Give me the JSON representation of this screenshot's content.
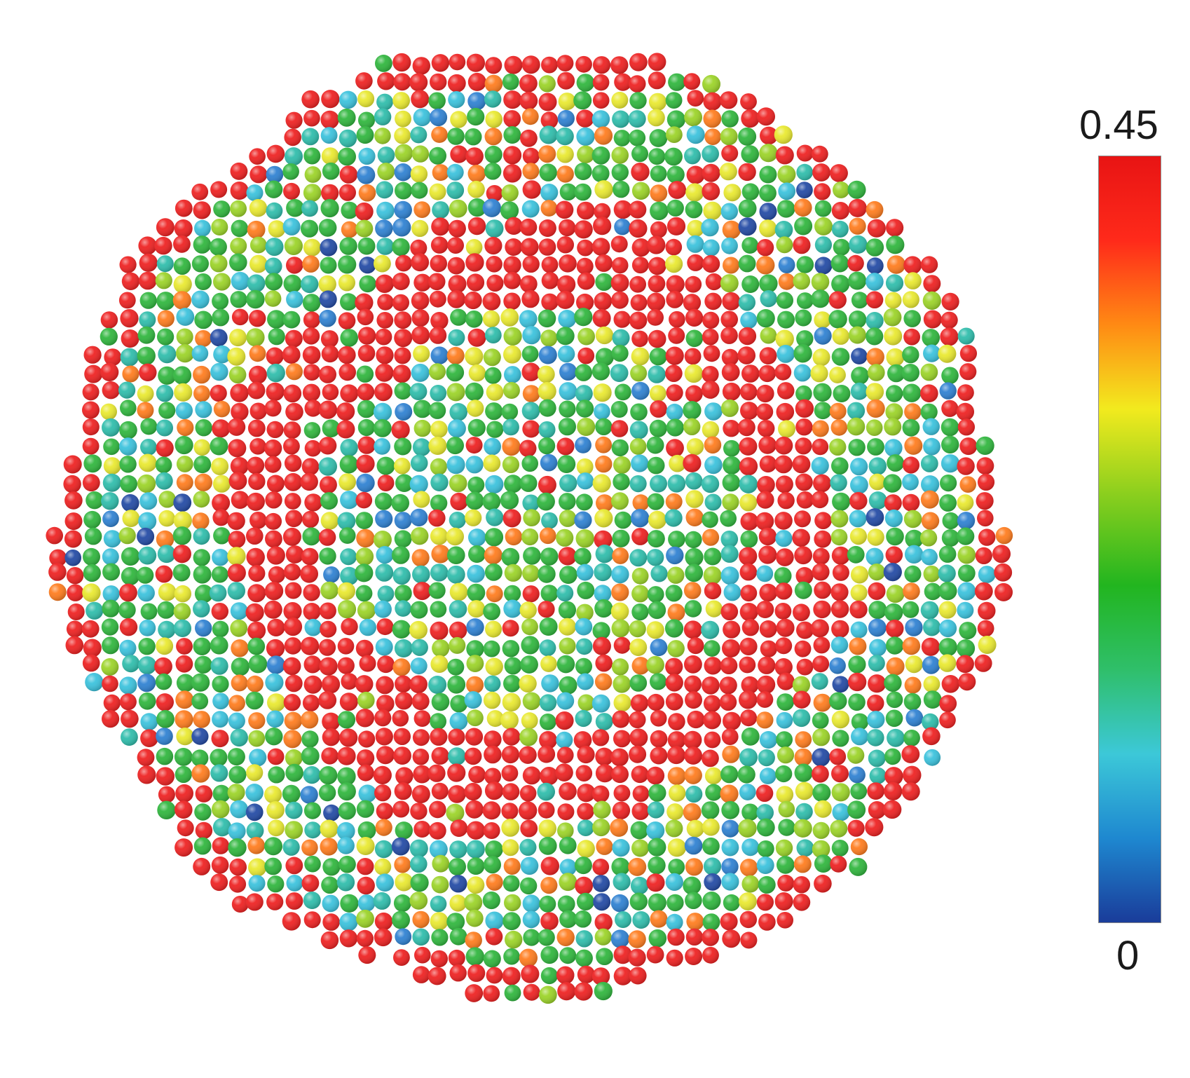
{
  "figure": {
    "description_type": "atomic-cluster-colormap",
    "colorbar": {
      "max_label": "0.45",
      "min_label": "0",
      "colormap": [
        "#1a3c9a",
        "#1e88d0",
        "#3cc8d8",
        "#2fbf6a",
        "#22b51f",
        "#8ccf1e",
        "#f2ea1e",
        "#ff8a14",
        "#ff2a1a",
        "#e81414"
      ]
    },
    "palette": {
      "red": "#ee1d1d",
      "orange": "#ff7a1a",
      "yellow": "#e9e92c",
      "lime": "#9ad324",
      "green": "#2cb53a",
      "teal": "#2bbcaa",
      "cyan": "#37c1dc",
      "blue": "#2b7fd1",
      "navy": "#1f47a3"
    }
  }
}
